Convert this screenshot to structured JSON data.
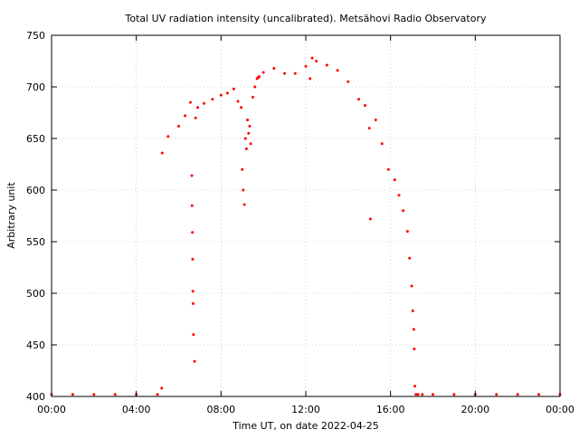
{
  "chart_data": {
    "type": "scatter",
    "title": "Total UV radiation intensity (uncalibrated). Metsähovi Radio Observatory",
    "xlabel": "Time UT, on date 2022-04-25",
    "ylabel": "Arbitrary unit",
    "xlim": [
      "00:00",
      "24:00"
    ],
    "ylim": [
      400,
      750
    ],
    "x_ticks": [
      "00:00",
      "04:00",
      "08:00",
      "12:00",
      "16:00",
      "20:00",
      "00:00"
    ],
    "y_ticks": [
      400,
      450,
      500,
      550,
      600,
      650,
      700,
      750
    ],
    "grid": true,
    "point_color": "#ff0000",
    "series": [
      {
        "x_hours": [
          0.0,
          1.0,
          2.0,
          3.0,
          4.0,
          5.0,
          5.2,
          5.22,
          5.5,
          6.0,
          6.3,
          6.55,
          6.62,
          6.63,
          6.65,
          6.66,
          6.67,
          6.68,
          6.7,
          6.75,
          6.8,
          6.9,
          7.2,
          7.6,
          8.0,
          8.3,
          8.6,
          8.8,
          8.95,
          9.0,
          9.05,
          9.1,
          9.15,
          9.2,
          9.25,
          9.3,
          9.35,
          9.4,
          9.5,
          9.6,
          9.7,
          9.75,
          9.8,
          10.0,
          10.5,
          11.0,
          11.5,
          12.0,
          12.2,
          12.3,
          12.5,
          13.0,
          13.5,
          14.0,
          14.5,
          14.8,
          15.0,
          15.05,
          15.3,
          15.6,
          15.9,
          16.2,
          16.4,
          16.6,
          16.8,
          16.9,
          17.0,
          17.05,
          17.1,
          17.12,
          17.15,
          17.2,
          17.3,
          17.5,
          18.0,
          19.0,
          20.0,
          21.0,
          22.0,
          23.0,
          24.0
        ],
        "y": [
          402,
          402,
          402,
          402,
          402,
          402,
          408,
          636,
          652,
          662,
          672,
          685,
          614,
          585,
          559,
          533,
          502,
          490,
          460,
          434,
          670,
          680,
          684,
          688,
          692,
          694,
          698,
          686,
          680,
          620,
          600,
          586,
          650,
          640,
          668,
          655,
          662,
          645,
          690,
          700,
          708,
          709,
          710,
          714,
          718,
          713,
          713,
          720,
          708,
          728,
          725,
          721,
          716,
          705,
          688,
          682,
          660,
          572,
          668,
          645,
          620,
          610,
          595,
          580,
          560,
          534,
          507,
          483,
          465,
          446,
          410,
          402,
          402,
          402,
          402,
          402,
          402,
          402,
          402,
          402,
          402
        ]
      }
    ]
  }
}
